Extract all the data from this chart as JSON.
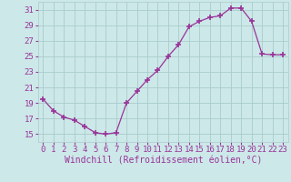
{
  "x": [
    0,
    1,
    2,
    3,
    4,
    5,
    6,
    7,
    8,
    9,
    10,
    11,
    12,
    13,
    14,
    15,
    16,
    17,
    18,
    19,
    20,
    21,
    22,
    23
  ],
  "y": [
    19.5,
    18.0,
    17.2,
    16.8,
    16.0,
    15.2,
    15.0,
    15.2,
    19.0,
    20.5,
    22.0,
    23.2,
    25.0,
    26.5,
    28.8,
    29.5,
    30.0,
    30.2,
    31.2,
    31.2,
    29.5,
    25.3,
    25.2,
    25.2
  ],
  "line_color": "#993399",
  "marker": "+",
  "marker_size": 4,
  "marker_lw": 1.2,
  "bg_color": "#cce8e8",
  "grid_color": "#aacccc",
  "tick_label_color": "#993399",
  "xlabel": "Windchill (Refroidissement éolien,°C)",
  "xlabel_color": "#993399",
  "xlabel_fontsize": 7,
  "tick_fontsize": 6.5,
  "ylim": [
    14,
    32
  ],
  "xlim": [
    -0.5,
    23.5
  ],
  "yticks": [
    15,
    17,
    19,
    21,
    23,
    25,
    27,
    29,
    31
  ],
  "xticks": [
    0,
    1,
    2,
    3,
    4,
    5,
    6,
    7,
    8,
    9,
    10,
    11,
    12,
    13,
    14,
    15,
    16,
    17,
    18,
    19,
    20,
    21,
    22,
    23
  ]
}
